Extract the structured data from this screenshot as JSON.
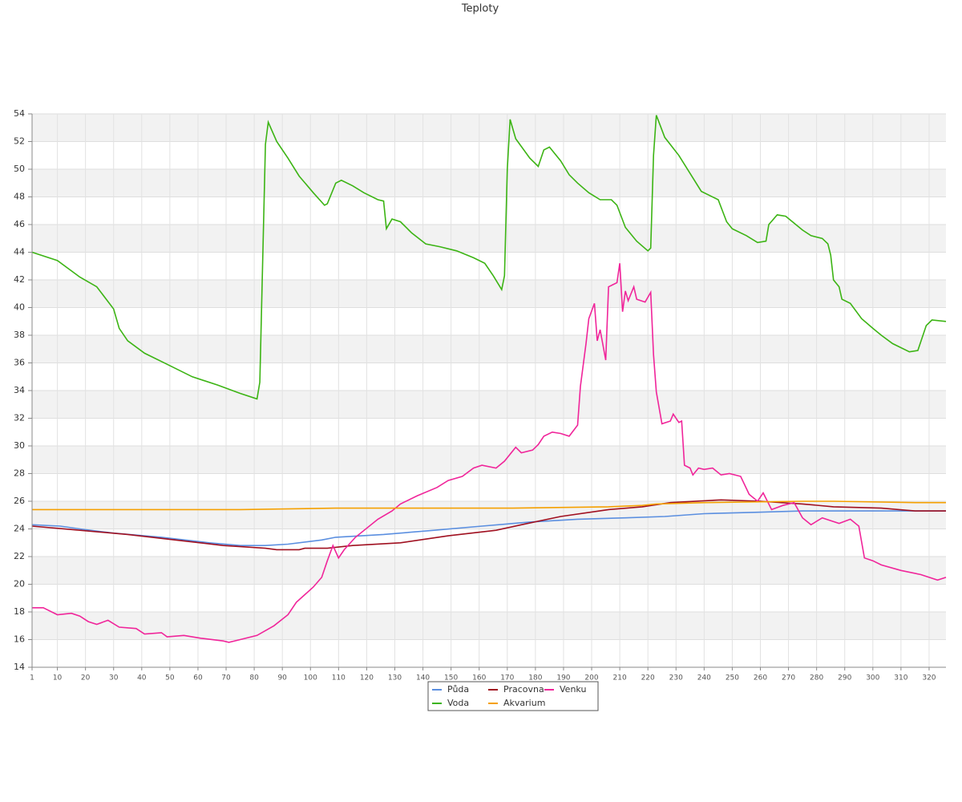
{
  "chart_data": {
    "type": "line",
    "title": "Teploty",
    "xlim": [
      1,
      326
    ],
    "xticks": [
      1,
      10,
      20,
      30,
      40,
      50,
      60,
      70,
      80,
      90,
      100,
      110,
      120,
      130,
      140,
      150,
      160,
      170,
      180,
      190,
      200,
      210,
      220,
      230,
      240,
      250,
      260,
      270,
      280,
      290,
      300,
      310,
      320
    ],
    "ylim": [
      14,
      54
    ],
    "yticks": [
      14,
      16,
      18,
      20,
      22,
      24,
      26,
      28,
      30,
      32,
      34,
      36,
      38,
      40,
      42,
      44,
      46,
      48,
      50,
      52,
      54
    ],
    "grid": true,
    "legend": "bottom",
    "series": [
      {
        "name": "Půda",
        "color": "#5b8fe0",
        "x": [
          1,
          11,
          18,
          30,
          47,
          64,
          75,
          84,
          92,
          104,
          109,
          126,
          144,
          161,
          178,
          195,
          212,
          226,
          240,
          258,
          275,
          292,
          309,
          326
        ],
        "values": [
          24.3,
          24.2,
          24.0,
          23.7,
          23.4,
          23.0,
          22.8,
          22.8,
          22.9,
          23.2,
          23.4,
          23.6,
          23.9,
          24.2,
          24.5,
          24.7,
          24.8,
          24.9,
          25.1,
          25.2,
          25.3,
          25.3,
          25.3,
          25.3
        ]
      },
      {
        "name": "Pracovna",
        "color": "#a01020",
        "x": [
          1,
          18,
          35,
          52,
          69,
          84,
          88,
          96,
          98,
          106,
          115,
          132,
          149,
          166,
          175,
          189,
          206,
          218,
          228,
          246,
          260,
          275,
          286,
          303,
          315,
          326
        ],
        "values": [
          24.2,
          23.9,
          23.6,
          23.2,
          22.8,
          22.6,
          22.5,
          22.5,
          22.6,
          22.6,
          22.8,
          23.0,
          23.5,
          23.9,
          24.3,
          24.9,
          25.4,
          25.6,
          25.9,
          26.1,
          26.0,
          25.8,
          25.6,
          25.5,
          25.3,
          25.3
        ]
      },
      {
        "name": "Venku",
        "color": "#f0259a",
        "x": [
          1,
          5,
          10,
          15,
          18,
          21,
          24,
          28,
          32,
          38,
          41,
          47,
          49,
          55,
          61,
          69,
          71,
          75,
          81,
          87,
          92,
          95,
          101,
          104,
          106,
          108,
          110,
          112,
          116,
          124,
          129,
          132,
          138,
          145,
          149,
          154,
          158,
          161,
          166,
          169,
          173,
          175,
          179,
          181,
          183,
          186,
          189,
          192,
          195,
          196,
          198,
          199,
          201,
          202,
          203,
          205,
          206,
          209,
          210,
          211,
          212,
          213,
          215,
          216,
          219,
          221,
          222,
          223,
          225,
          228,
          229,
          231,
          232,
          233,
          235,
          236,
          238,
          240,
          243,
          246,
          249,
          253,
          256,
          259,
          261,
          264,
          268,
          272,
          275,
          278,
          282,
          288,
          292,
          295,
          297,
          300,
          303,
          310,
          317,
          323,
          326
        ],
        "values": [
          18.3,
          18.3,
          17.8,
          17.9,
          17.7,
          17.3,
          17.1,
          17.4,
          16.9,
          16.8,
          16.4,
          16.5,
          16.2,
          16.3,
          16.1,
          15.9,
          15.8,
          16.0,
          16.3,
          17.0,
          17.8,
          18.7,
          19.8,
          20.5,
          21.7,
          22.8,
          21.9,
          22.5,
          23.4,
          24.7,
          25.3,
          25.8,
          26.4,
          27.0,
          27.5,
          27.8,
          28.4,
          28.6,
          28.4,
          28.9,
          29.9,
          29.5,
          29.7,
          30.1,
          30.7,
          31.0,
          30.9,
          30.7,
          31.5,
          34.3,
          37.4,
          39.2,
          40.3,
          37.6,
          38.4,
          36.2,
          41.5,
          41.8,
          43.2,
          39.7,
          41.2,
          40.5,
          41.5,
          40.6,
          40.4,
          41.1,
          36.6,
          33.9,
          31.6,
          31.8,
          32.3,
          31.7,
          31.8,
          28.6,
          28.4,
          27.9,
          28.4,
          28.3,
          28.4,
          27.9,
          28.0,
          27.8,
          26.5,
          26.0,
          26.6,
          25.4,
          25.7,
          25.9,
          24.8,
          24.3,
          24.8,
          24.4,
          24.7,
          24.2,
          21.9,
          21.7,
          21.4,
          21.0,
          20.7,
          20.3,
          20.5
        ]
      },
      {
        "name": "Voda",
        "color": "#3cb414",
        "x": [
          1,
          10,
          18,
          24,
          30,
          32,
          35,
          41,
          49,
          58,
          67,
          75,
          81,
          82,
          84,
          85,
          88,
          92,
          96,
          101,
          105,
          106,
          109,
          111,
          115,
          119,
          124,
          126,
          127,
          129,
          132,
          136,
          141,
          146,
          152,
          158,
          162,
          165,
          168,
          169,
          170,
          171,
          173,
          178,
          181,
          183,
          185,
          189,
          192,
          195,
          199,
          203,
          207,
          209,
          212,
          216,
          220,
          221,
          222,
          223,
          226,
          231,
          235,
          239,
          245,
          248,
          250,
          255,
          259,
          262,
          263,
          266,
          269,
          272,
          275,
          278,
          282,
          284,
          285,
          286,
          288,
          289,
          292,
          296,
          300,
          303,
          307,
          313,
          316,
          319,
          321,
          326
        ],
        "values": [
          44.0,
          43.4,
          42.2,
          41.5,
          39.9,
          38.5,
          37.6,
          36.7,
          35.9,
          35.0,
          34.4,
          33.8,
          33.4,
          34.6,
          51.8,
          53.4,
          52.0,
          50.8,
          49.5,
          48.3,
          47.4,
          47.5,
          49.0,
          49.2,
          48.8,
          48.3,
          47.8,
          47.7,
          45.7,
          46.4,
          46.2,
          45.4,
          44.6,
          44.4,
          44.1,
          43.6,
          43.2,
          42.3,
          41.3,
          42.3,
          50.0,
          53.6,
          52.2,
          50.8,
          50.2,
          51.4,
          51.6,
          50.6,
          49.6,
          49.0,
          48.3,
          47.8,
          47.8,
          47.4,
          45.8,
          44.8,
          44.1,
          44.3,
          51.0,
          53.9,
          52.3,
          51.0,
          49.7,
          48.4,
          47.8,
          46.2,
          45.7,
          45.2,
          44.7,
          44.8,
          46.0,
          46.7,
          46.6,
          46.1,
          45.6,
          45.2,
          45.0,
          44.6,
          43.8,
          42.0,
          41.5,
          40.6,
          40.3,
          39.2,
          38.5,
          38.0,
          37.4,
          36.8,
          36.9,
          38.7,
          39.1,
          39.0
        ]
      },
      {
        "name": "Akvarium",
        "color": "#f5a000",
        "x": [
          1,
          75,
          109,
          172,
          206,
          218,
          223,
          240,
          275,
          286,
          315,
          326
        ],
        "values": [
          25.4,
          25.4,
          25.5,
          25.5,
          25.6,
          25.7,
          25.8,
          25.9,
          26.0,
          26.0,
          25.9,
          25.9
        ]
      }
    ]
  }
}
